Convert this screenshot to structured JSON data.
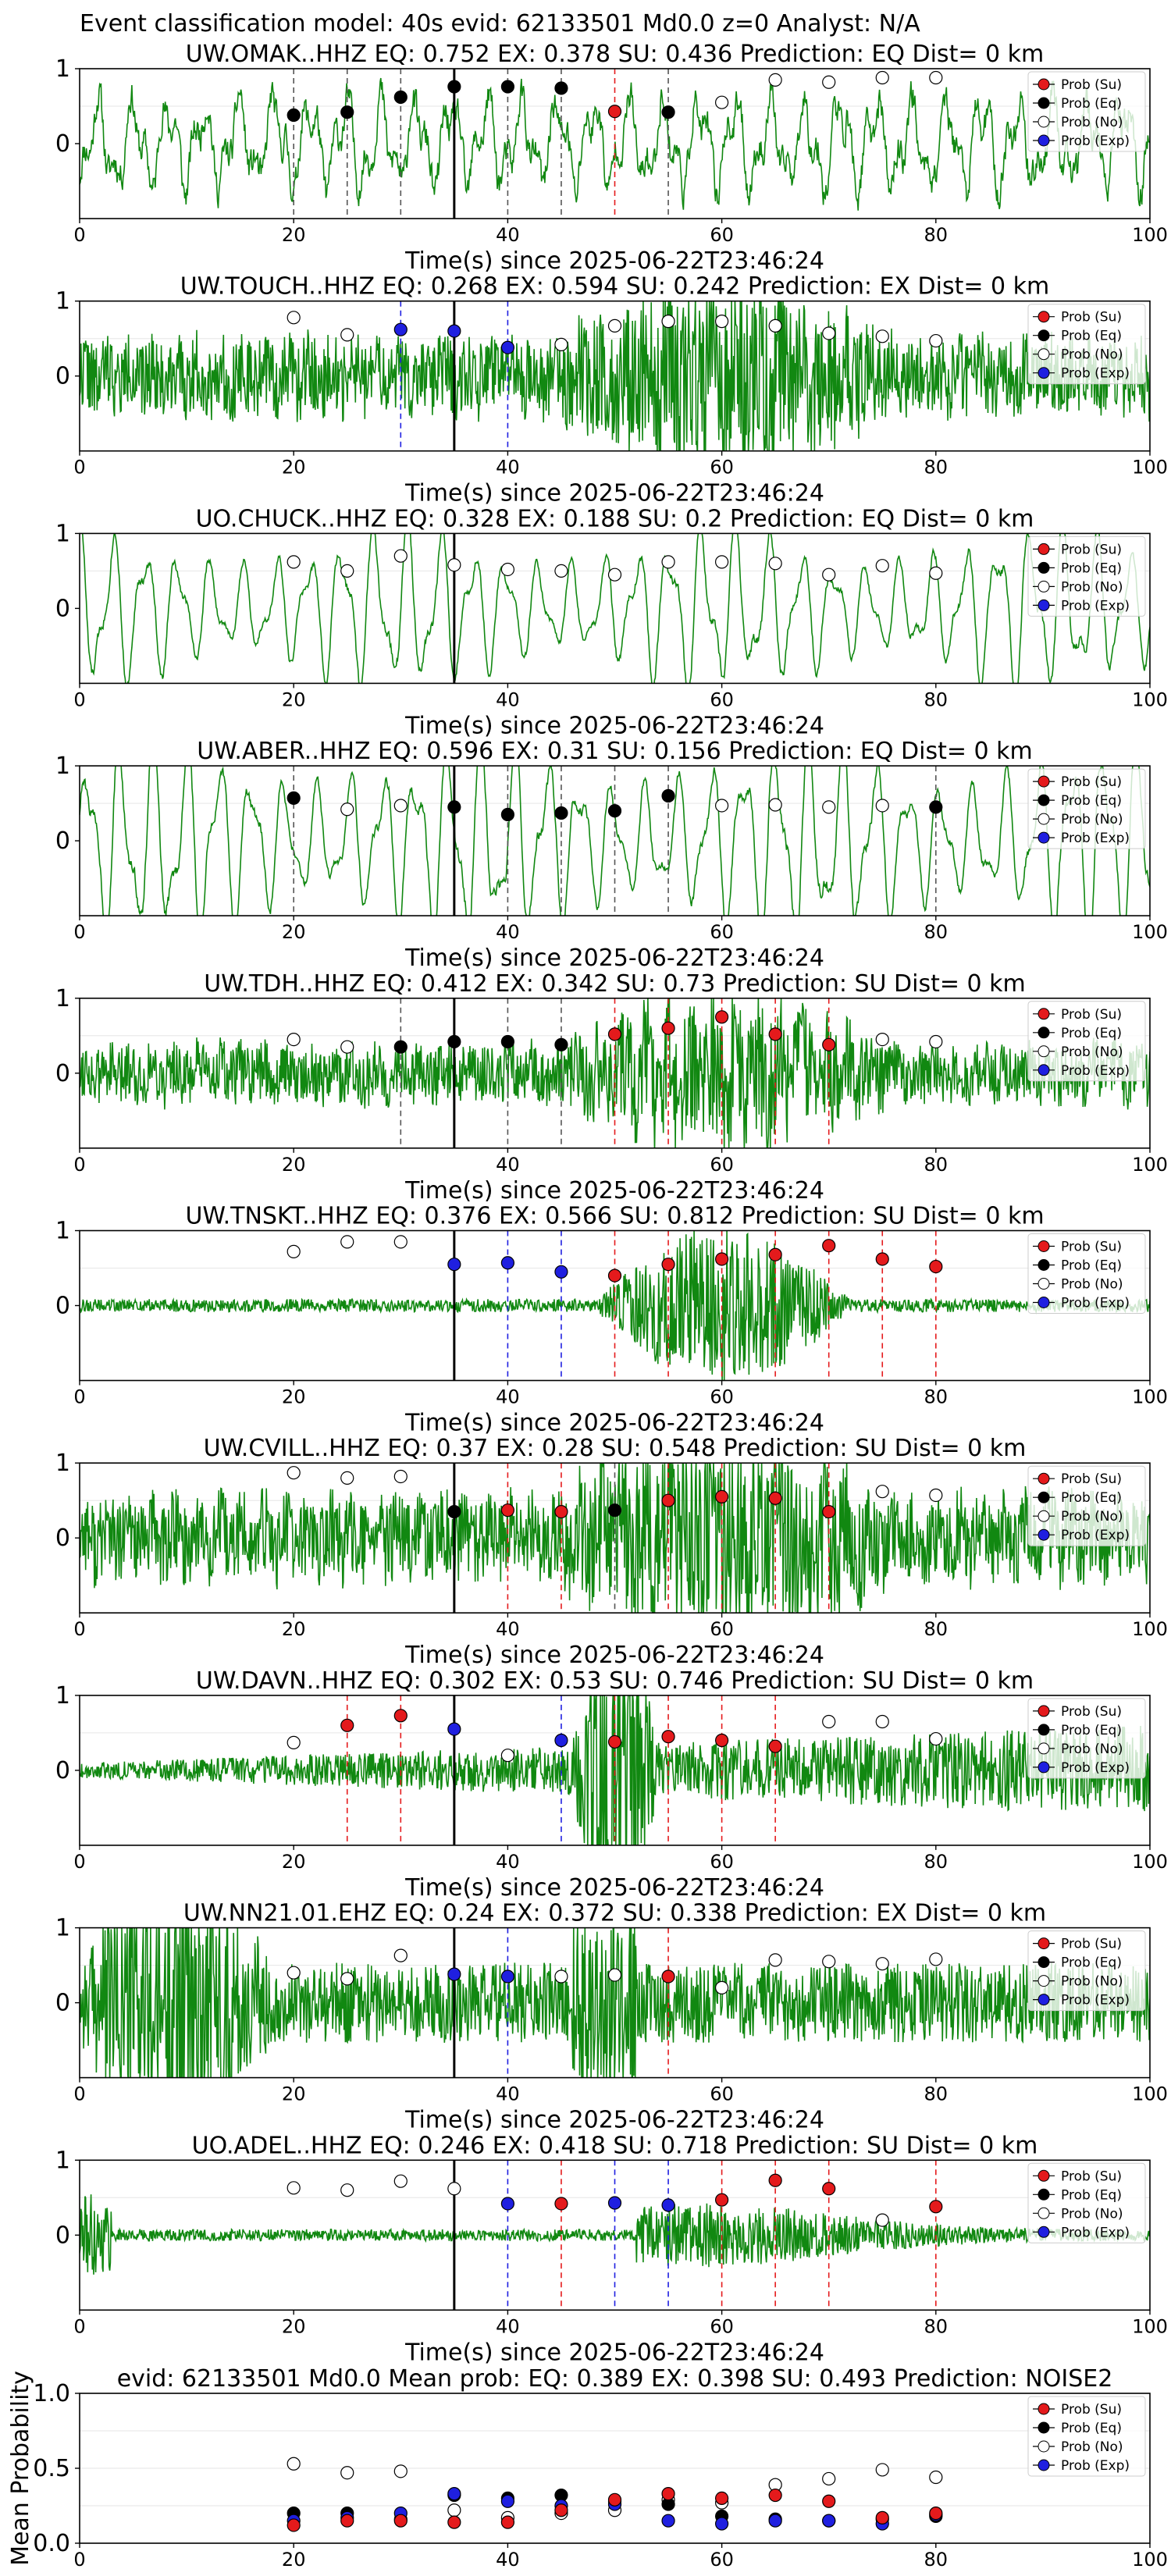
{
  "figure_title": "Event classification model: 40s evid: 62133501 Md0.0 z=0 Analyst: N/A",
  "legend": [
    {
      "label": "Prob (Su)",
      "color": "#e41a1c"
    },
    {
      "label": "Prob (Eq)",
      "color": "#000000"
    },
    {
      "label": "Prob (No)",
      "color": "#ffffff"
    },
    {
      "label": "Prob (Exp)",
      "color": "#1f1fe0"
    }
  ],
  "colors": {
    "waveform": "#118811",
    "su": "#e41a1c",
    "eq": "#000000",
    "no": "#ffffff",
    "exp": "#1f1fe0",
    "pick_line": "#000000"
  },
  "chart_data": [
    {
      "type": "line",
      "title": "UW.OMAK..HHZ   EQ: 0.752  EX: 0.378  SU: 0.436   Prediction: EQ    Dist= 0 km",
      "xlabel": "Time(s) since 2025-06-22T23:46:24",
      "xlim": [
        0,
        100
      ],
      "ylim": [
        -1,
        1
      ],
      "xticks": [
        "0",
        "20",
        "40",
        "60",
        "80",
        "100"
      ],
      "yticks": [
        "1",
        "0"
      ],
      "pick_time": 35,
      "waveform": {
        "style": "mixed",
        "amplitude": 0.45,
        "seed": 11
      },
      "points": {
        "t": [
          20,
          25,
          30,
          35,
          40,
          45,
          50,
          55,
          60,
          65,
          70,
          75,
          80
        ],
        "prob": [
          0.38,
          0.42,
          0.62,
          0.76,
          0.76,
          0.74,
          0.43,
          0.42,
          0.55,
          0.85,
          0.82,
          0.88,
          0.88
        ],
        "class": [
          "eq",
          "eq",
          "eq",
          "eq",
          "eq",
          "eq",
          "su",
          "eq",
          "no",
          "no",
          "no",
          "no",
          "no"
        ]
      }
    },
    {
      "type": "line",
      "title": "UW.TOUCH..HHZ   EQ: 0.268  EX: 0.594  SU: 0.242   Prediction: EX    Dist= 0 km",
      "xlabel": "Time(s) since 2025-06-22T23:46:24",
      "xlim": [
        0,
        100
      ],
      "ylim": [
        -1,
        1
      ],
      "xticks": [
        "0",
        "20",
        "40",
        "60",
        "80",
        "100"
      ],
      "yticks": [
        "1",
        "0"
      ],
      "pick_time": 35,
      "waveform": {
        "style": "noisy_burst",
        "amplitude": 0.45,
        "seed": 22
      },
      "points": {
        "t": [
          20,
          25,
          30,
          35,
          40,
          45,
          50,
          55,
          60,
          65,
          70,
          75,
          80
        ],
        "prob": [
          0.78,
          0.55,
          0.62,
          0.6,
          0.38,
          0.42,
          0.67,
          0.73,
          0.73,
          0.67,
          0.57,
          0.53,
          0.47
        ],
        "class": [
          "no",
          "no",
          "exp",
          "exp",
          "exp",
          "no",
          "no",
          "no",
          "no",
          "no",
          "no",
          "no",
          "no"
        ]
      }
    },
    {
      "type": "line",
      "title": "UO.CHUCK..HHZ   EQ: 0.328  EX: 0.188  SU: 0.2   Prediction: EQ    Dist= 0 km",
      "xlabel": "Time(s) since 2025-06-22T23:46:24",
      "xlim": [
        0,
        100
      ],
      "ylim": [
        -1,
        1
      ],
      "xticks": [
        "0",
        "20",
        "40",
        "60",
        "80",
        "100"
      ],
      "yticks": [
        "1",
        "0"
      ],
      "pick_time": 35,
      "waveform": {
        "style": "oscillation",
        "amplitude": 0.6,
        "seed": 33
      },
      "points": {
        "t": [
          20,
          25,
          30,
          35,
          40,
          45,
          50,
          55,
          60,
          65,
          70,
          75,
          80
        ],
        "prob": [
          0.62,
          0.5,
          0.7,
          0.58,
          0.52,
          0.5,
          0.45,
          0.62,
          0.62,
          0.6,
          0.45,
          0.57,
          0.47
        ],
        "class": [
          "no",
          "no",
          "no",
          "no",
          "no",
          "no",
          "no",
          "no",
          "no",
          "no",
          "no",
          "no",
          "no"
        ]
      }
    },
    {
      "type": "line",
      "title": "UW.ABER..HHZ   EQ: 0.596  EX: 0.31  SU: 0.156   Prediction: EQ    Dist= 0 km",
      "xlabel": "Time(s) since 2025-06-22T23:46:24",
      "xlim": [
        0,
        100
      ],
      "ylim": [
        -1,
        1
      ],
      "xticks": [
        "0",
        "20",
        "40",
        "60",
        "80",
        "100"
      ],
      "yticks": [
        "1",
        "0"
      ],
      "pick_time": 35,
      "waveform": {
        "style": "oscillation",
        "amplitude": 0.75,
        "seed": 44
      },
      "points": {
        "t": [
          20,
          25,
          30,
          35,
          40,
          45,
          50,
          55,
          60,
          65,
          70,
          75,
          80
        ],
        "prob": [
          0.57,
          0.42,
          0.47,
          0.45,
          0.35,
          0.37,
          0.4,
          0.6,
          0.47,
          0.48,
          0.45,
          0.47,
          0.45
        ],
        "class": [
          "eq",
          "no",
          "no",
          "eq",
          "eq",
          "eq",
          "eq",
          "eq",
          "no",
          "no",
          "no",
          "no",
          "eq"
        ]
      }
    },
    {
      "type": "line",
      "title": "UW.TDH..HHZ   EQ: 0.412  EX: 0.342  SU: 0.73   Prediction: SU    Dist= 0 km",
      "xlabel": "Time(s) since 2025-06-22T23:46:24",
      "xlim": [
        0,
        100
      ],
      "ylim": [
        -1,
        1
      ],
      "xticks": [
        "0",
        "20",
        "40",
        "60",
        "80",
        "100"
      ],
      "yticks": [
        "1",
        "0"
      ],
      "pick_time": 35,
      "waveform": {
        "style": "noisy_burst",
        "amplitude": 0.35,
        "seed": 55
      },
      "points": {
        "t": [
          20,
          25,
          30,
          35,
          40,
          45,
          50,
          55,
          60,
          65,
          70,
          75,
          80
        ],
        "prob": [
          0.45,
          0.35,
          0.35,
          0.42,
          0.42,
          0.38,
          0.52,
          0.6,
          0.75,
          0.52,
          0.38,
          0.45,
          0.42
        ],
        "class": [
          "no",
          "no",
          "eq",
          "eq",
          "eq",
          "eq",
          "su",
          "su",
          "su",
          "su",
          "su",
          "no",
          "no"
        ]
      }
    },
    {
      "type": "line",
      "title": "UW.TNSKT..HHZ   EQ: 0.376  EX: 0.566  SU: 0.812   Prediction: SU    Dist= 0 km",
      "xlabel": "Time(s) since 2025-06-22T23:46:24",
      "xlim": [
        0,
        100
      ],
      "ylim": [
        -1,
        1
      ],
      "xticks": [
        "0",
        "20",
        "40",
        "60",
        "80",
        "100"
      ],
      "yticks": [
        "1",
        "0"
      ],
      "pick_time": 35,
      "waveform": {
        "style": "quiet_burst",
        "amplitude": 0.55,
        "seed": 66
      },
      "points": {
        "t": [
          20,
          25,
          30,
          35,
          40,
          45,
          50,
          55,
          60,
          65,
          70,
          75,
          80
        ],
        "prob": [
          0.72,
          0.85,
          0.85,
          0.55,
          0.57,
          0.45,
          0.4,
          0.55,
          0.62,
          0.68,
          0.8,
          0.62,
          0.52
        ],
        "class": [
          "no",
          "no",
          "no",
          "exp",
          "exp",
          "exp",
          "su",
          "su",
          "su",
          "su",
          "su",
          "su",
          "su"
        ]
      }
    },
    {
      "type": "line",
      "title": "UW.CVILL..HHZ   EQ: 0.37  EX: 0.28  SU: 0.548   Prediction: SU    Dist= 0 km",
      "xlabel": "Time(s) since 2025-06-22T23:46:24",
      "xlim": [
        0,
        100
      ],
      "ylim": [
        -1,
        1
      ],
      "xticks": [
        "0",
        "20",
        "40",
        "60",
        "80",
        "100"
      ],
      "yticks": [
        "1",
        "0"
      ],
      "pick_time": 35,
      "waveform": {
        "style": "noisy_burst",
        "amplitude": 0.5,
        "seed": 77
      },
      "points": {
        "t": [
          20,
          25,
          30,
          35,
          40,
          45,
          50,
          55,
          60,
          65,
          70,
          75,
          80
        ],
        "prob": [
          0.87,
          0.8,
          0.82,
          0.35,
          0.37,
          0.35,
          0.37,
          0.5,
          0.55,
          0.53,
          0.35,
          0.62,
          0.57
        ],
        "class": [
          "no",
          "no",
          "no",
          "eq",
          "su",
          "su",
          "eq",
          "su",
          "su",
          "su",
          "su",
          "no",
          "no"
        ]
      }
    },
    {
      "type": "line",
      "title": "UW.DAVN..HHZ   EQ: 0.302  EX: 0.53  SU: 0.746   Prediction: SU    Dist= 0 km",
      "xlabel": "Time(s) since 2025-06-22T23:46:24",
      "xlim": [
        0,
        100
      ],
      "ylim": [
        -1,
        1
      ],
      "xticks": [
        "0",
        "20",
        "40",
        "60",
        "80",
        "100"
      ],
      "yticks": [
        "1",
        "0"
      ],
      "pick_time": 35,
      "waveform": {
        "style": "spike_at_50",
        "amplitude": 0.9,
        "seed": 88
      },
      "points": {
        "t": [
          20,
          25,
          30,
          35,
          40,
          45,
          50,
          55,
          60,
          65,
          70,
          75,
          80
        ],
        "prob": [
          0.37,
          0.6,
          0.73,
          0.55,
          0.2,
          0.4,
          0.38,
          0.45,
          0.4,
          0.32,
          0.65,
          0.65,
          0.42
        ],
        "class": [
          "no",
          "su",
          "su",
          "exp",
          "no",
          "exp",
          "su",
          "su",
          "su",
          "su",
          "no",
          "no",
          "no"
        ]
      }
    },
    {
      "type": "line",
      "title": "UW.NN21.01.EHZ   EQ: 0.24  EX: 0.372  SU: 0.338   Prediction: EX    Dist= 0 km",
      "xlabel": "Time(s) since 2025-06-22T23:46:24",
      "xlim": [
        0,
        100
      ],
      "ylim": [
        -1,
        1
      ],
      "xticks": [
        "0",
        "20",
        "40",
        "60",
        "80",
        "100"
      ],
      "yticks": [
        "1",
        "0"
      ],
      "pick_time": 35,
      "waveform": {
        "style": "early_burst",
        "amplitude": 0.8,
        "seed": 99
      },
      "points": {
        "t": [
          20,
          25,
          30,
          35,
          40,
          45,
          50,
          55,
          60,
          65,
          70,
          75,
          80
        ],
        "prob": [
          0.4,
          0.32,
          0.63,
          0.38,
          0.35,
          0.35,
          0.37,
          0.35,
          0.2,
          0.57,
          0.55,
          0.52,
          0.58
        ],
        "class": [
          "no",
          "no",
          "no",
          "exp",
          "exp",
          "no",
          "no",
          "su",
          "no",
          "no",
          "no",
          "no",
          "no"
        ]
      }
    },
    {
      "type": "line",
      "title": "UO.ADEL..HHZ   EQ: 0.246  EX: 0.418  SU: 0.718   Prediction: SU    Dist= 0 km",
      "xlabel": "Time(s) since 2025-06-22T23:46:24",
      "xlim": [
        0,
        100
      ],
      "ylim": [
        -1,
        1
      ],
      "xticks": [
        "0",
        "20",
        "40",
        "60",
        "80",
        "100"
      ],
      "yticks": [
        "1",
        "0"
      ],
      "pick_time": 35,
      "waveform": {
        "style": "quiet_burst_late",
        "amplitude": 0.35,
        "seed": 111
      },
      "points": {
        "t": [
          20,
          25,
          30,
          35,
          40,
          45,
          50,
          55,
          60,
          65,
          70,
          75,
          80
        ],
        "prob": [
          0.63,
          0.6,
          0.72,
          0.62,
          0.42,
          0.42,
          0.43,
          0.4,
          0.47,
          0.73,
          0.62,
          0.2,
          0.38
        ],
        "class": [
          "no",
          "no",
          "no",
          "no",
          "exp",
          "su",
          "exp",
          "exp",
          "su",
          "su",
          "su",
          "no",
          "su"
        ]
      }
    }
  ],
  "summary_chart": {
    "type": "scatter",
    "title": "evid: 62133501  Md0.0   Mean prob:   EQ: 0.389  EX: 0.398  SU: 0.493   Prediction: NOISE2",
    "ylabel": "Mean Probability",
    "xlim": [
      0,
      100
    ],
    "ylim": [
      0,
      1
    ],
    "xticks": [
      "0",
      "20",
      "40",
      "60",
      "80",
      "100"
    ],
    "yticks": [
      "0.0",
      "0.5",
      "1.0"
    ],
    "grid": true,
    "t": [
      20,
      25,
      30,
      35,
      40,
      45,
      50,
      55,
      60,
      65,
      70,
      75,
      80
    ],
    "series": [
      {
        "name": "Prob (No)",
        "key": "no",
        "values": [
          0.53,
          0.47,
          0.48,
          0.22,
          0.17,
          0.2,
          0.22,
          0.29,
          0.27,
          0.39,
          0.43,
          0.49,
          0.44
        ]
      },
      {
        "name": "Prob (Eq)",
        "key": "eq",
        "values": [
          0.2,
          0.2,
          0.16,
          0.32,
          0.3,
          0.32,
          0.28,
          0.26,
          0.18,
          0.16,
          0.15,
          0.16,
          0.18
        ]
      },
      {
        "name": "Prob (Exp)",
        "key": "exp",
        "values": [
          0.15,
          0.17,
          0.2,
          0.33,
          0.28,
          0.25,
          0.26,
          0.15,
          0.13,
          0.15,
          0.15,
          0.13,
          0.19
        ]
      },
      {
        "name": "Prob (Su)",
        "key": "su",
        "values": [
          0.12,
          0.15,
          0.15,
          0.14,
          0.14,
          0.22,
          0.29,
          0.33,
          0.3,
          0.32,
          0.28,
          0.17,
          0.2
        ]
      }
    ]
  }
}
